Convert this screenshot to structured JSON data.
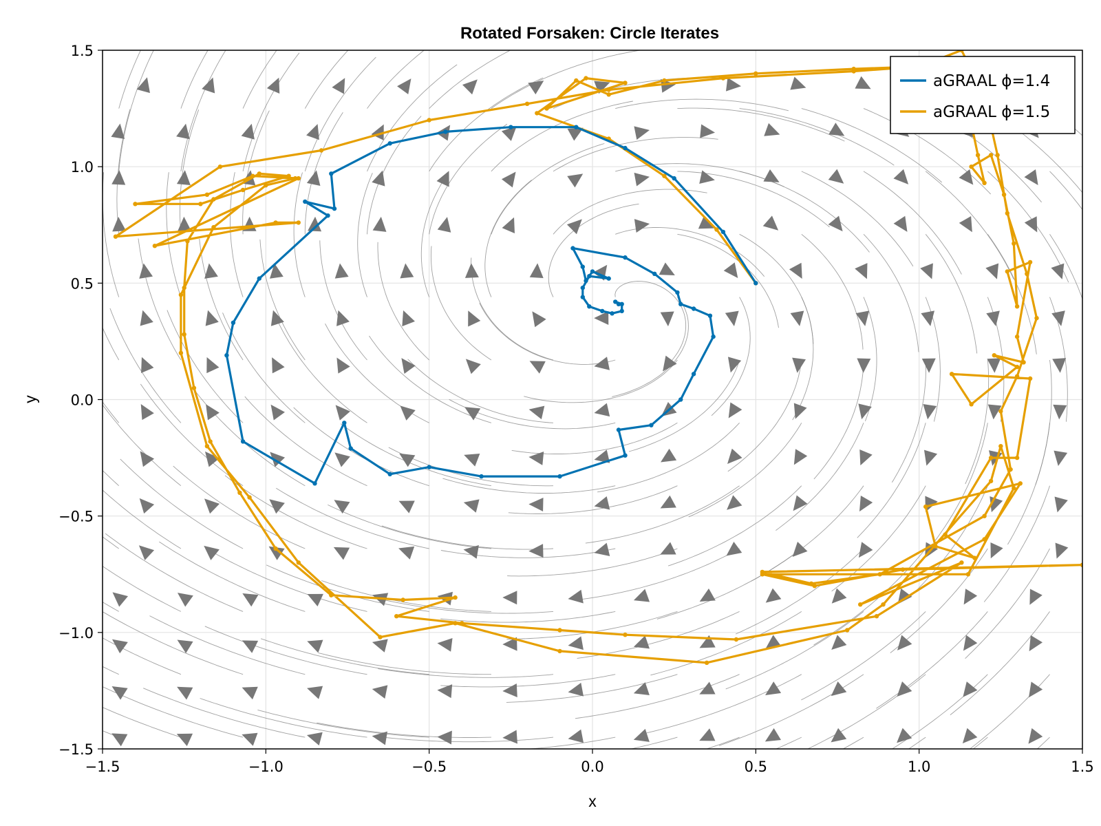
{
  "chart_data": {
    "type": "line",
    "title": "Rotated Forsaken: Circle Iterates",
    "xlabel": "x",
    "ylabel": "y",
    "xlim": [
      -1.5,
      1.5
    ],
    "ylim": [
      -1.5,
      1.5
    ],
    "xticks": [
      -1.5,
      -1.0,
      -0.5,
      0.0,
      0.5,
      1.0,
      1.5
    ],
    "yticks": [
      -1.5,
      -1.0,
      -0.5,
      0.0,
      0.5,
      1.0,
      1.5
    ],
    "xtick_labels": [
      "−1.5",
      "−1.0",
      "−0.5",
      "0.0",
      "0.5",
      "1.0",
      "1.5"
    ],
    "ytick_labels": [
      "−1.5",
      "−1.0",
      "−0.5",
      "0.0",
      "0.5",
      "1.0",
      "1.5"
    ],
    "grid": true,
    "legend_position": "top-right",
    "background": {
      "kind": "streamplot",
      "line_color": "#888888",
      "arrow_color": "#777777",
      "center": [
        0.08,
        0.42
      ]
    },
    "series": [
      {
        "name": "aGRAAL ϕ=1.4",
        "color": "#0072b2",
        "points": [
          [
            0.5,
            0.5
          ],
          [
            0.4,
            0.72
          ],
          [
            0.25,
            0.95
          ],
          [
            0.1,
            1.08
          ],
          [
            -0.05,
            1.17
          ],
          [
            -0.25,
            1.17
          ],
          [
            -0.45,
            1.15
          ],
          [
            -0.62,
            1.1
          ],
          [
            -0.8,
            0.97
          ],
          [
            -0.79,
            0.82
          ],
          [
            -0.88,
            0.85
          ],
          [
            -0.81,
            0.79
          ],
          [
            -1.02,
            0.52
          ],
          [
            -1.1,
            0.33
          ],
          [
            -1.12,
            0.19
          ],
          [
            -1.07,
            -0.18
          ],
          [
            -0.85,
            -0.36
          ],
          [
            -0.76,
            -0.1
          ],
          [
            -0.74,
            -0.21
          ],
          [
            -0.62,
            -0.32
          ],
          [
            -0.5,
            -0.29
          ],
          [
            -0.34,
            -0.33
          ],
          [
            -0.1,
            -0.33
          ],
          [
            0.1,
            -0.24
          ],
          [
            0.08,
            -0.13
          ],
          [
            0.18,
            -0.11
          ],
          [
            0.27,
            0.0
          ],
          [
            0.31,
            0.11
          ],
          [
            0.37,
            0.27
          ],
          [
            0.36,
            0.36
          ],
          [
            0.31,
            0.39
          ],
          [
            0.27,
            0.41
          ],
          [
            0.26,
            0.46
          ],
          [
            0.19,
            0.54
          ],
          [
            0.1,
            0.61
          ],
          [
            -0.06,
            0.65
          ],
          [
            -0.03,
            0.57
          ],
          [
            -0.02,
            0.51
          ],
          [
            0.0,
            0.55
          ],
          [
            0.05,
            0.52
          ],
          [
            -0.01,
            0.53
          ],
          [
            -0.03,
            0.48
          ],
          [
            -0.03,
            0.44
          ],
          [
            -0.01,
            0.4
          ],
          [
            0.03,
            0.38
          ],
          [
            0.06,
            0.37
          ],
          [
            0.09,
            0.38
          ],
          [
            0.09,
            0.41
          ],
          [
            0.07,
            0.42
          ],
          [
            0.08,
            0.41
          ]
        ]
      },
      {
        "name": "aGRAAL ϕ=1.5",
        "color": "#e69f00",
        "points": [
          [
            0.5,
            0.5
          ],
          [
            0.38,
            0.73
          ],
          [
            0.22,
            0.96
          ],
          [
            0.05,
            1.12
          ],
          [
            -0.17,
            1.23
          ],
          [
            -0.02,
            1.38
          ],
          [
            0.1,
            1.36
          ],
          [
            -0.14,
            1.25
          ],
          [
            -0.05,
            1.37
          ],
          [
            0.05,
            1.31
          ],
          [
            0.22,
            1.37
          ],
          [
            0.5,
            1.4
          ],
          [
            0.8,
            1.42
          ],
          [
            1.0,
            1.43
          ],
          [
            1.1,
            1.44
          ],
          [
            1.15,
            1.25
          ],
          [
            1.18,
            1.05
          ],
          [
            1.2,
            0.93
          ],
          [
            1.16,
            1.0
          ],
          [
            1.22,
            1.05
          ],
          [
            1.26,
            0.88
          ],
          [
            1.29,
            0.67
          ],
          [
            1.3,
            0.4
          ],
          [
            1.27,
            0.55
          ],
          [
            1.34,
            0.59
          ],
          [
            1.3,
            0.27
          ],
          [
            1.32,
            0.16
          ],
          [
            1.23,
            0.19
          ],
          [
            1.3,
            0.14
          ],
          [
            1.16,
            -0.02
          ],
          [
            1.1,
            0.11
          ],
          [
            1.34,
            0.09
          ],
          [
            1.3,
            -0.25
          ],
          [
            1.22,
            -0.25
          ],
          [
            1.08,
            -0.58
          ],
          [
            1.17,
            -0.68
          ],
          [
            1.05,
            -0.63
          ],
          [
            1.02,
            -0.46
          ],
          [
            1.31,
            -0.36
          ],
          [
            1.2,
            -0.6
          ],
          [
            0.82,
            -0.88
          ],
          [
            1.13,
            -0.7
          ],
          [
            0.87,
            -0.93
          ],
          [
            0.44,
            -1.03
          ],
          [
            0.1,
            -1.01
          ],
          [
            -0.1,
            -0.99
          ],
          [
            -0.4,
            -0.96
          ],
          [
            -0.6,
            -0.93
          ],
          [
            -0.42,
            -0.85
          ],
          [
            -0.58,
            -0.86
          ],
          [
            -0.8,
            -0.84
          ],
          [
            -0.97,
            -0.64
          ],
          [
            -1.08,
            -0.4
          ],
          [
            -1.17,
            -0.18
          ],
          [
            -1.22,
            0.05
          ],
          [
            -1.25,
            0.28
          ],
          [
            -1.25,
            0.48
          ],
          [
            -1.24,
            0.68
          ],
          [
            -1.16,
            0.86
          ],
          [
            -1.02,
            0.97
          ],
          [
            -0.93,
            0.96
          ],
          [
            -1.07,
            0.9
          ],
          [
            -1.2,
            0.84
          ],
          [
            -1.4,
            0.84
          ],
          [
            -1.18,
            0.88
          ],
          [
            -1.04,
            0.96
          ],
          [
            -0.9,
            0.95
          ],
          [
            -1.34,
            0.66
          ],
          [
            -0.97,
            0.76
          ],
          [
            -0.9,
            0.76
          ],
          [
            -1.46,
            0.7
          ],
          [
            -1.14,
            1.0
          ],
          [
            -0.83,
            1.07
          ],
          [
            -0.5,
            1.2
          ],
          [
            -0.2,
            1.27
          ],
          [
            0.05,
            1.33
          ],
          [
            0.4,
            1.38
          ],
          [
            0.8,
            1.41
          ],
          [
            1.0,
            1.43
          ],
          [
            1.13,
            1.5
          ],
          [
            1.2,
            1.3
          ],
          [
            1.24,
            1.05
          ],
          [
            1.27,
            0.8
          ],
          [
            1.33,
            0.54
          ],
          [
            1.36,
            0.35
          ],
          [
            1.3,
            0.1
          ],
          [
            1.25,
            -0.05
          ],
          [
            1.28,
            -0.3
          ],
          [
            1.2,
            -0.5
          ],
          [
            0.88,
            -0.75
          ],
          [
            0.67,
            -0.79
          ],
          [
            0.52,
            -0.74
          ],
          [
            1.5,
            -0.71
          ],
          [
            1.5,
            -0.71
          ],
          [
            0.95,
            -0.73
          ],
          [
            0.68,
            -0.8
          ],
          [
            0.52,
            -0.75
          ],
          [
            1.15,
            -0.75
          ],
          [
            1.29,
            -0.38
          ],
          [
            1.25,
            -0.2
          ],
          [
            1.22,
            -0.35
          ],
          [
            0.89,
            -0.88
          ],
          [
            0.78,
            -0.99
          ],
          [
            0.35,
            -1.13
          ],
          [
            -0.1,
            -1.08
          ],
          [
            -0.42,
            -0.96
          ],
          [
            -0.65,
            -1.02
          ],
          [
            -0.9,
            -0.7
          ],
          [
            -1.05,
            -0.42
          ],
          [
            -1.18,
            -0.2
          ],
          [
            -1.26,
            0.2
          ],
          [
            -1.26,
            0.45
          ],
          [
            -1.16,
            0.74
          ],
          [
            -1.0,
            0.92
          ],
          [
            -0.91,
            0.95
          ]
        ]
      }
    ]
  }
}
